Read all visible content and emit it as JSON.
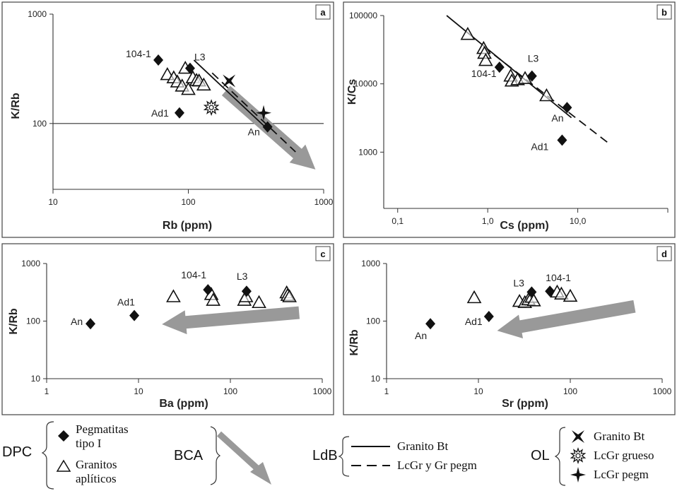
{
  "chart_data": [
    {
      "panel": "a",
      "type": "scatter",
      "xlabel": "Rb (ppm)",
      "ylabel": "K/Rb",
      "xlog": true,
      "ylog": true,
      "xlim": [
        10,
        1000
      ],
      "ylim": [
        25,
        1000
      ],
      "xticks": [
        "10",
        "100",
        "1000"
      ],
      "yticks": [
        "1000",
        "100"
      ],
      "hline": 100,
      "series": [
        {
          "name": "Pegmatitas tipo I",
          "marker": "diamond",
          "points": [
            {
              "x": 60,
              "y": 380,
              "label": "104-1"
            },
            {
              "x": 103,
              "y": 320,
              "label": "L3"
            },
            {
              "x": 86,
              "y": 125,
              "label": "Ad1"
            },
            {
              "x": 385,
              "y": 93,
              "label": "An"
            }
          ]
        },
        {
          "name": "Granitos aplíticos",
          "marker": "triangle",
          "points": [
            {
              "x": 70,
              "y": 280
            },
            {
              "x": 78,
              "y": 262
            },
            {
              "x": 83,
              "y": 240
            },
            {
              "x": 90,
              "y": 220
            },
            {
              "x": 95,
              "y": 320
            },
            {
              "x": 100,
              "y": 205
            },
            {
              "x": 108,
              "y": 262
            },
            {
              "x": 115,
              "y": 248
            },
            {
              "x": 120,
              "y": 245
            },
            {
              "x": 130,
              "y": 225
            }
          ]
        },
        {
          "name": "Granito Bt",
          "marker": "bowtie",
          "points": [
            {
              "x": 200,
              "y": 245
            }
          ]
        },
        {
          "name": "LcGr grueso",
          "marker": "sunburst",
          "points": [
            {
              "x": 148,
              "y": 140
            }
          ]
        },
        {
          "name": "LcGr pegm",
          "marker": "star4",
          "points": [
            {
              "x": 360,
              "y": 125
            }
          ]
        }
      ],
      "lines": [
        {
          "name": "Granito Bt",
          "style": "solid",
          "points": [
            [
              110,
              380
            ],
            [
              380,
              90
            ]
          ]
        },
        {
          "name": "LcGr y Gr pegm",
          "style": "dashed",
          "points": [
            [
              150,
              290
            ],
            [
              620,
              55
            ]
          ]
        }
      ],
      "arrow": {
        "from": [
          190,
          200
        ],
        "to": [
          870,
          38
        ]
      }
    },
    {
      "panel": "b",
      "type": "scatter",
      "xlabel": "Cs (ppm)",
      "ylabel": "K/Cs",
      "xlog": true,
      "ylog": true,
      "xlim": [
        0.07,
        100
      ],
      "ylim": [
        150,
        100000
      ],
      "xticks": [
        "0,1",
        "1,0",
        "10,0"
      ],
      "yticks": [
        "100000",
        "10000",
        "1000"
      ],
      "series": [
        {
          "name": "Pegmatitas tipo I",
          "marker": "diamond",
          "points": [
            {
              "x": 1.35,
              "y": 17500,
              "label": "104-1"
            },
            {
              "x": 3.1,
              "y": 13000,
              "label": "L3"
            },
            {
              "x": 7.6,
              "y": 4500,
              "label": "An"
            },
            {
              "x": 6.7,
              "y": 1500,
              "label": "Ad1"
            }
          ]
        },
        {
          "name": "Granitos aplíticos",
          "marker": "triangle",
          "points": [
            {
              "x": 0.6,
              "y": 53000
            },
            {
              "x": 0.9,
              "y": 33000
            },
            {
              "x": 0.92,
              "y": 28000
            },
            {
              "x": 0.95,
              "y": 22000
            },
            {
              "x": 1.8,
              "y": 13000
            },
            {
              "x": 1.85,
              "y": 11000
            },
            {
              "x": 2.15,
              "y": 11500
            },
            {
              "x": 2.6,
              "y": 12000
            },
            {
              "x": 4.5,
              "y": 6700
            }
          ]
        }
      ],
      "lines": [
        {
          "name": "Granito Bt",
          "style": "solid",
          "points": [
            [
              0.35,
              100000
            ],
            [
              8.5,
              3200
            ]
          ]
        },
        {
          "name": "LcGr y Gr pegm",
          "style": "dashed",
          "points": [
            [
              0.9,
              35000
            ],
            [
              22,
              1350
            ]
          ]
        }
      ]
    },
    {
      "panel": "c",
      "type": "scatter",
      "xlabel": "Ba (ppm)",
      "ylabel": "K/Rb",
      "xlog": true,
      "ylog": true,
      "xlim": [
        1,
        1000
      ],
      "ylim": [
        10,
        1000
      ],
      "xticks": [
        "1",
        "10",
        "100",
        "1000"
      ],
      "yticks": [
        "1000",
        "100",
        "10"
      ],
      "series": [
        {
          "name": "Pegmatitas tipo I",
          "marker": "diamond",
          "points": [
            {
              "x": 3,
              "y": 90,
              "label": "An"
            },
            {
              "x": 9,
              "y": 125,
              "label": "Ad1"
            },
            {
              "x": 57,
              "y": 350,
              "label": "104-1"
            },
            {
              "x": 150,
              "y": 330,
              "label": "L3"
            }
          ]
        },
        {
          "name": "Granitos aplíticos",
          "marker": "triangle",
          "points": [
            {
              "x": 24,
              "y": 265
            },
            {
              "x": 62,
              "y": 290
            },
            {
              "x": 65,
              "y": 230
            },
            {
              "x": 142,
              "y": 230
            },
            {
              "x": 148,
              "y": 265
            },
            {
              "x": 205,
              "y": 210
            },
            {
              "x": 410,
              "y": 310
            },
            {
              "x": 420,
              "y": 280
            },
            {
              "x": 440,
              "y": 265
            }
          ]
        }
      ],
      "arrow": {
        "from": [
          560,
          140
        ],
        "to": [
          18,
          88
        ]
      }
    },
    {
      "panel": "d",
      "type": "scatter",
      "xlabel": "Sr (ppm)",
      "ylabel": "K/Rb",
      "xlog": true,
      "ylog": true,
      "xlim": [
        1,
        1000
      ],
      "ylim": [
        10,
        1000
      ],
      "xticks": [
        "1",
        "10",
        "100",
        "1000"
      ],
      "yticks": [
        "1000",
        "100",
        "10"
      ],
      "series": [
        {
          "name": "Pegmatitas tipo I",
          "marker": "diamond",
          "points": [
            {
              "x": 3,
              "y": 90,
              "label": "An"
            },
            {
              "x": 13,
              "y": 120,
              "label": "Ad1"
            },
            {
              "x": 38,
              "y": 320,
              "label": "L3"
            },
            {
              "x": 60,
              "y": 330,
              "label": "104-1"
            }
          ]
        },
        {
          "name": "Granitos aplíticos",
          "marker": "triangle",
          "points": [
            {
              "x": 9,
              "y": 255
            },
            {
              "x": 28,
              "y": 220
            },
            {
              "x": 32,
              "y": 210
            },
            {
              "x": 35,
              "y": 235
            },
            {
              "x": 38,
              "y": 260
            },
            {
              "x": 40,
              "y": 225
            },
            {
              "x": 72,
              "y": 320
            },
            {
              "x": 80,
              "y": 295
            },
            {
              "x": 100,
              "y": 270
            }
          ]
        }
      ],
      "arrow": {
        "from": [
          500,
          180
        ],
        "to": [
          16,
          68
        ]
      }
    }
  ],
  "legend": {
    "groups": [
      {
        "symbol": "DPC",
        "items": [
          {
            "marker": "diamond",
            "lines": [
              "Pegmatitas",
              "tipo I"
            ]
          },
          {
            "marker": "triangle",
            "lines": [
              "Granitos",
              "aplíticos"
            ]
          }
        ]
      },
      {
        "symbol": "BCA",
        "items": [
          {
            "marker": "arrow",
            "lines": []
          }
        ]
      },
      {
        "symbol": "LdB",
        "items": [
          {
            "marker": "solid-line",
            "lines": [
              "Granito Bt"
            ]
          },
          {
            "marker": "dashed-line",
            "lines": [
              "LcGr y Gr pegm"
            ]
          }
        ]
      },
      {
        "symbol": "OL",
        "items": [
          {
            "marker": "bowtie",
            "lines": [
              "Granito Bt"
            ]
          },
          {
            "marker": "sunburst",
            "lines": [
              "LcGr grueso"
            ]
          },
          {
            "marker": "star4",
            "lines": [
              "LcGr pegm"
            ]
          }
        ]
      }
    ]
  }
}
